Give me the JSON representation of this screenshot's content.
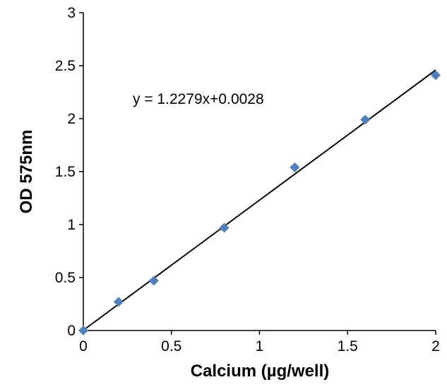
{
  "chart_data": {
    "type": "scatter",
    "title": "",
    "xlabel": "Calcium (µg/well)",
    "ylabel": "OD 575nm",
    "xlim": [
      0,
      2
    ],
    "ylim": [
      0,
      3
    ],
    "x_ticks": [
      "0",
      "0.5",
      "1",
      "1.5",
      "2"
    ],
    "y_ticks": [
      "0",
      "0.5",
      "1",
      "1.5",
      "2",
      "2.5",
      "3"
    ],
    "grid": false,
    "legend": "none",
    "series": [
      {
        "marker": "diamond",
        "color": "#4F81BD",
        "x": [
          0,
          0.2,
          0.4,
          0.8,
          1.2,
          1.6,
          2.0
        ],
        "y": [
          0.0,
          0.27,
          0.47,
          0.97,
          1.54,
          1.99,
          2.41
        ]
      }
    ],
    "trendline": {
      "slope": 1.2279,
      "intercept": 0.0028,
      "color": "#000000"
    },
    "annotation": "y = 1.2279x+0.0028"
  }
}
